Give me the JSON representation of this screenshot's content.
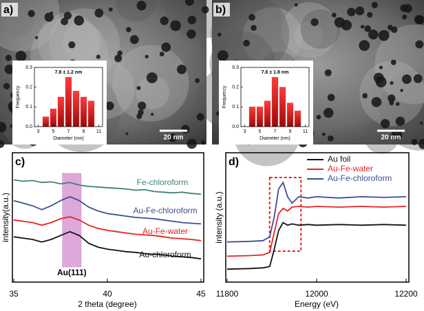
{
  "chart_data": [
    {
      "type": "bar",
      "panel_label": "a)",
      "scale_bar": "20 nm",
      "title": "7.8 ± 1.2 nm",
      "x_label": "Diameter (nm)",
      "y_label": "Frequency",
      "x": [
        4,
        5,
        6,
        7,
        8,
        9,
        10
      ],
      "values": [
        0.05,
        0.09,
        0.15,
        0.25,
        0.18,
        0.15,
        0.13
      ],
      "color": "#e52222",
      "xlim": [
        2.5,
        11.5
      ],
      "xticks": [
        3,
        5,
        7,
        9,
        11
      ],
      "ylim": [
        0,
        0.3
      ],
      "yticks": [
        {
          "value": 0,
          "label": "0.0"
        },
        0.1,
        0.2,
        0.3
      ]
    },
    {
      "type": "bar",
      "panel_label": "b)",
      "scale_bar": "20 nm",
      "title": "7.6 ± 1.8 nm",
      "x_label": "Diameter (nm)",
      "y_label": "Frequency",
      "x": [
        4,
        5,
        6,
        7,
        8,
        9,
        10
      ],
      "values": [
        0.1,
        0.1,
        0.13,
        0.25,
        0.2,
        0.12,
        0.08
      ],
      "color": "#e52222",
      "xlim": [
        2.5,
        11.5
      ],
      "xticks": [
        3,
        5,
        7,
        9,
        11
      ],
      "ylim": [
        0,
        0.3
      ],
      "yticks": [
        {
          "value": 0,
          "label": "0.0"
        },
        0.1,
        0.2,
        0.3
      ]
    },
    {
      "type": "line",
      "panel_label": "c)",
      "x_label": "2 theta (degree)",
      "y_label": "intensity(a.u.)",
      "annotation": "Au(111)",
      "highlight": [
        37.6,
        38.6
      ],
      "x": [
        35,
        35.5,
        36,
        36.5,
        37,
        37.5,
        38,
        38.5,
        39,
        39.5,
        40,
        40.5,
        41,
        41.5,
        42,
        42.5,
        43,
        43.5,
        44,
        44.5,
        45
      ],
      "xlim": [
        35,
        45
      ],
      "xticks": [
        35,
        40,
        45
      ],
      "ylim": [
        0,
        10
      ],
      "series": [
        {
          "name": "Fe-chloroform",
          "color": "#3f7f7a",
          "values": [
            7.9,
            7.8,
            7.85,
            7.7,
            7.75,
            7.6,
            7.7,
            7.5,
            7.4,
            7.35,
            7.3,
            7.25,
            7.2,
            7.1,
            7.15,
            7.0,
            6.95,
            6.9,
            6.95,
            6.85,
            6.8
          ]
        },
        {
          "name": "Au-Fe-chloroform",
          "color": "#3a4f8f",
          "values": [
            6.3,
            6.1,
            5.9,
            5.6,
            5.9,
            6.3,
            6.6,
            6.3,
            5.8,
            5.5,
            5.3,
            5.2,
            5.1,
            5.0,
            4.95,
            4.9,
            4.8,
            4.7,
            4.6,
            4.55,
            4.5
          ]
        },
        {
          "name": "Au-Fe-water",
          "color": "#e52222",
          "values": [
            4.8,
            4.7,
            4.6,
            4.4,
            4.6,
            4.9,
            5.05,
            4.8,
            4.4,
            4.15,
            4.0,
            3.9,
            3.8,
            3.7,
            3.65,
            3.6,
            3.5,
            3.4,
            3.35,
            3.3,
            3.2
          ]
        },
        {
          "name": "Au-chloroform",
          "color": "#111111",
          "values": [
            3.5,
            3.4,
            3.3,
            3.1,
            3.3,
            3.6,
            3.9,
            3.6,
            3.0,
            2.7,
            2.55,
            2.45,
            2.35,
            2.3,
            2.2,
            2.15,
            2.1,
            2.0,
            1.95,
            1.9,
            1.8
          ]
        }
      ]
    },
    {
      "type": "line",
      "panel_label": "d)",
      "x_label": "Energy (eV)",
      "y_label": "intensity (a.u.)",
      "highlight": [
        11895,
        11965
      ],
      "legend": "top-right",
      "x": [
        11800,
        11850,
        11880,
        11895,
        11905,
        11915,
        11925,
        11935,
        11945,
        11960,
        11980,
        12000,
        12050,
        12100,
        12150,
        12200
      ],
      "xlim": [
        11800,
        12200
      ],
      "xticks": [
        11800,
        12000,
        12200
      ],
      "ylim": [
        0,
        10
      ],
      "series": [
        {
          "name": "Au foil",
          "color": "#111111",
          "values": [
            1.0,
            1.05,
            1.1,
            1.2,
            2.5,
            4.0,
            4.6,
            4.4,
            4.5,
            4.4,
            4.45,
            4.4,
            4.45,
            4.4,
            4.45,
            4.4
          ]
        },
        {
          "name": "Au-Fe-water",
          "color": "#e52222",
          "values": [
            2.0,
            2.05,
            2.1,
            2.3,
            3.8,
            5.3,
            5.7,
            5.5,
            5.8,
            5.85,
            5.8,
            5.85,
            5.8,
            5.85,
            5.8,
            5.85
          ]
        },
        {
          "name": "Au-Fe-chloroform",
          "color": "#3a4f8f",
          "values": [
            3.1,
            3.15,
            3.2,
            3.5,
            5.0,
            7.2,
            7.7,
            6.6,
            6.1,
            6.6,
            6.5,
            6.6,
            6.5,
            6.6,
            6.55,
            6.6
          ]
        }
      ]
    }
  ]
}
